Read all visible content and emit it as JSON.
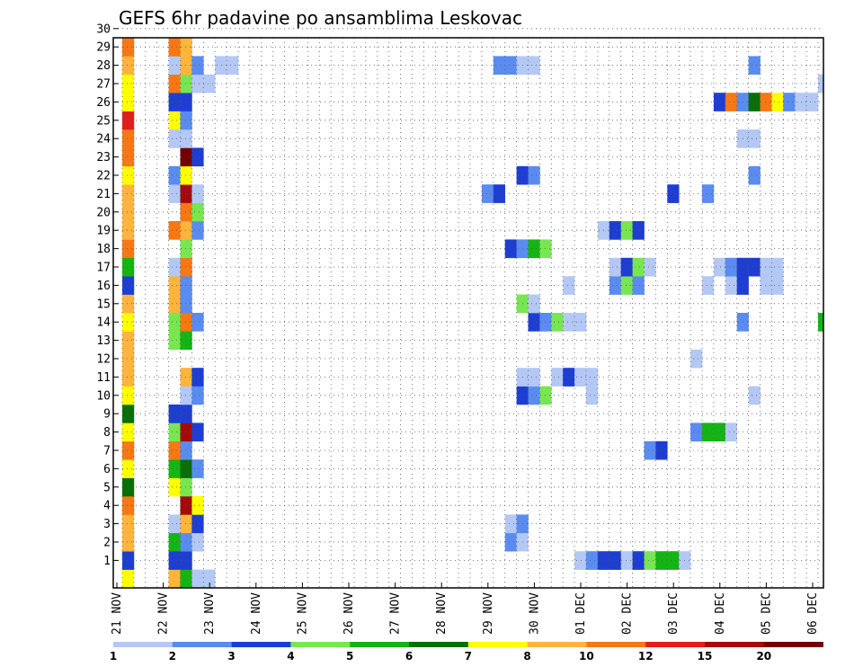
{
  "chart_data": {
    "type": "heatmap",
    "title": "GEFS 6hr padavine po ansamblima Leskovac",
    "xlabel": "",
    "ylabel": "",
    "x_tick_labels": [
      "21 NOV",
      "22 NOV",
      "23 NOV",
      "24 NOV",
      "25 NOV",
      "26 NOV",
      "27 NOV",
      "28 NOV",
      "29 NOV",
      "30 NOV",
      "01 DEC",
      "02 DEC",
      "03 DEC",
      "04 DEC",
      "05 DEC",
      "06 DEC"
    ],
    "y_tick_labels": [
      "1",
      "2",
      "3",
      "4",
      "5",
      "6",
      "7",
      "8",
      "9",
      "10",
      "11",
      "12",
      "13",
      "14",
      "15",
      "16",
      "17",
      "18",
      "19",
      "20",
      "21",
      "22",
      "23",
      "24",
      "25",
      "26",
      "27",
      "28",
      "29",
      "30"
    ],
    "x_unit": "6-hour step from 21 NOV 00z (4 steps per day)",
    "y_unit": "ensemble member (0 = control)",
    "grid": "dotted, every 6 hours",
    "colorbar": {
      "placement": "bottom",
      "labels": [
        "1",
        "2",
        "3",
        "4",
        "5",
        "6",
        "7",
        "8",
        "10",
        "12",
        "15",
        "20"
      ],
      "colors": [
        "#b4c8f5",
        "#5a8cf0",
        "#1e3ed2",
        "#78e650",
        "#14b414",
        "#0a6e0a",
        "#ffff00",
        "#ffb43c",
        "#f57814",
        "#e11e1e",
        "#a50a0a",
        "#730000"
      ]
    },
    "cells": [
      {
        "m": 0,
        "t": 0,
        "v": 7
      },
      {
        "m": 0,
        "t": 4,
        "v": 8
      },
      {
        "m": 0,
        "t": 5,
        "v": 5
      },
      {
        "m": 0,
        "t": 6,
        "v": 1
      },
      {
        "m": 0,
        "t": 7,
        "v": 1
      },
      {
        "m": 1,
        "t": 0,
        "v": 3
      },
      {
        "m": 1,
        "t": 4,
        "v": 3
      },
      {
        "m": 1,
        "t": 5,
        "v": 3
      },
      {
        "m": 1,
        "t": 39,
        "v": 1
      },
      {
        "m": 1,
        "t": 40,
        "v": 2
      },
      {
        "m": 1,
        "t": 41,
        "v": 3
      },
      {
        "m": 1,
        "t": 42,
        "v": 3
      },
      {
        "m": 1,
        "t": 43,
        "v": 1
      },
      {
        "m": 1,
        "t": 44,
        "v": 3
      },
      {
        "m": 1,
        "t": 45,
        "v": 4
      },
      {
        "m": 1,
        "t": 46,
        "v": 5
      },
      {
        "m": 1,
        "t": 47,
        "v": 5
      },
      {
        "m": 1,
        "t": 48,
        "v": 1
      },
      {
        "m": 2,
        "t": 0,
        "v": 8
      },
      {
        "m": 2,
        "t": 4,
        "v": 5
      },
      {
        "m": 2,
        "t": 5,
        "v": 2
      },
      {
        "m": 2,
        "t": 6,
        "v": 1
      },
      {
        "m": 2,
        "t": 33,
        "v": 2
      },
      {
        "m": 2,
        "t": 34,
        "v": 1
      },
      {
        "m": 3,
        "t": 0,
        "v": 8
      },
      {
        "m": 3,
        "t": 4,
        "v": 1
      },
      {
        "m": 3,
        "t": 5,
        "v": 8
      },
      {
        "m": 3,
        "t": 6,
        "v": 3
      },
      {
        "m": 3,
        "t": 33,
        "v": 1
      },
      {
        "m": 3,
        "t": 34,
        "v": 2
      },
      {
        "m": 4,
        "t": 0,
        "v": 10
      },
      {
        "m": 4,
        "t": 5,
        "v": 15
      },
      {
        "m": 4,
        "t": 6,
        "v": 7
      },
      {
        "m": 5,
        "t": 0,
        "v": 6
      },
      {
        "m": 5,
        "t": 4,
        "v": 7
      },
      {
        "m": 5,
        "t": 5,
        "v": 4
      },
      {
        "m": 6,
        "t": 0,
        "v": 7
      },
      {
        "m": 6,
        "t": 4,
        "v": 5
      },
      {
        "m": 6,
        "t": 5,
        "v": 6
      },
      {
        "m": 6,
        "t": 6,
        "v": 2
      },
      {
        "m": 7,
        "t": 0,
        "v": 10
      },
      {
        "m": 7,
        "t": 4,
        "v": 10
      },
      {
        "m": 7,
        "t": 5,
        "v": 2
      },
      {
        "m": 7,
        "t": 45,
        "v": 2
      },
      {
        "m": 7,
        "t": 46,
        "v": 3
      },
      {
        "m": 8,
        "t": 0,
        "v": 7
      },
      {
        "m": 8,
        "t": 4,
        "v": 4
      },
      {
        "m": 8,
        "t": 5,
        "v": 15
      },
      {
        "m": 8,
        "t": 6,
        "v": 3
      },
      {
        "m": 8,
        "t": 49,
        "v": 2
      },
      {
        "m": 8,
        "t": 50,
        "v": 5
      },
      {
        "m": 8,
        "t": 51,
        "v": 5
      },
      {
        "m": 8,
        "t": 52,
        "v": 1
      },
      {
        "m": 9,
        "t": 0,
        "v": 6
      },
      {
        "m": 9,
        "t": 4,
        "v": 3
      },
      {
        "m": 9,
        "t": 5,
        "v": 3
      },
      {
        "m": 10,
        "t": 0,
        "v": 7
      },
      {
        "m": 10,
        "t": 5,
        "v": 1
      },
      {
        "m": 10,
        "t": 6,
        "v": 2
      },
      {
        "m": 10,
        "t": 34,
        "v": 3
      },
      {
        "m": 10,
        "t": 35,
        "v": 2
      },
      {
        "m": 10,
        "t": 36,
        "v": 4
      },
      {
        "m": 10,
        "t": 40,
        "v": 1
      },
      {
        "m": 10,
        "t": 54,
        "v": 1
      },
      {
        "m": 11,
        "t": 0,
        "v": 8
      },
      {
        "m": 11,
        "t": 5,
        "v": 8
      },
      {
        "m": 11,
        "t": 6,
        "v": 3
      },
      {
        "m": 11,
        "t": 34,
        "v": 1
      },
      {
        "m": 11,
        "t": 35,
        "v": 1
      },
      {
        "m": 11,
        "t": 37,
        "v": 1
      },
      {
        "m": 11,
        "t": 38,
        "v": 3
      },
      {
        "m": 11,
        "t": 39,
        "v": 1
      },
      {
        "m": 11,
        "t": 40,
        "v": 1
      },
      {
        "m": 12,
        "t": 0,
        "v": 8
      },
      {
        "m": 12,
        "t": 49,
        "v": 1
      },
      {
        "m": 13,
        "t": 0,
        "v": 8
      },
      {
        "m": 13,
        "t": 4,
        "v": 4
      },
      {
        "m": 13,
        "t": 5,
        "v": 5
      },
      {
        "m": 14,
        "t": 0,
        "v": 7
      },
      {
        "m": 14,
        "t": 4,
        "v": 4
      },
      {
        "m": 14,
        "t": 5,
        "v": 10
      },
      {
        "m": 14,
        "t": 6,
        "v": 2
      },
      {
        "m": 14,
        "t": 35,
        "v": 3
      },
      {
        "m": 14,
        "t": 36,
        "v": 2
      },
      {
        "m": 14,
        "t": 37,
        "v": 4
      },
      {
        "m": 14,
        "t": 38,
        "v": 1
      },
      {
        "m": 14,
        "t": 39,
        "v": 1
      },
      {
        "m": 14,
        "t": 53,
        "v": 2
      },
      {
        "m": 14,
        "t": 60,
        "v": 5
      },
      {
        "m": 14,
        "t": 61,
        "v": 4
      },
      {
        "m": 15,
        "t": 0,
        "v": 8
      },
      {
        "m": 15,
        "t": 4,
        "v": 8
      },
      {
        "m": 15,
        "t": 5,
        "v": 2
      },
      {
        "m": 15,
        "t": 34,
        "v": 4
      },
      {
        "m": 15,
        "t": 35,
        "v": 1
      },
      {
        "m": 16,
        "t": 0,
        "v": 3
      },
      {
        "m": 16,
        "t": 4,
        "v": 8
      },
      {
        "m": 16,
        "t": 5,
        "v": 2
      },
      {
        "m": 16,
        "t": 38,
        "v": 1
      },
      {
        "m": 16,
        "t": 42,
        "v": 2
      },
      {
        "m": 16,
        "t": 43,
        "v": 4
      },
      {
        "m": 16,
        "t": 44,
        "v": 2
      },
      {
        "m": 16,
        "t": 50,
        "v": 1
      },
      {
        "m": 16,
        "t": 52,
        "v": 1
      },
      {
        "m": 16,
        "t": 53,
        "v": 3
      },
      {
        "m": 16,
        "t": 55,
        "v": 1
      },
      {
        "m": 16,
        "t": 56,
        "v": 1
      },
      {
        "m": 17,
        "t": 0,
        "v": 5
      },
      {
        "m": 17,
        "t": 4,
        "v": 1
      },
      {
        "m": 17,
        "t": 5,
        "v": 10
      },
      {
        "m": 17,
        "t": 42,
        "v": 1
      },
      {
        "m": 17,
        "t": 43,
        "v": 3
      },
      {
        "m": 17,
        "t": 44,
        "v": 4
      },
      {
        "m": 17,
        "t": 45,
        "v": 1
      },
      {
        "m": 17,
        "t": 51,
        "v": 1
      },
      {
        "m": 17,
        "t": 52,
        "v": 2
      },
      {
        "m": 17,
        "t": 53,
        "v": 3
      },
      {
        "m": 17,
        "t": 54,
        "v": 3
      },
      {
        "m": 17,
        "t": 55,
        "v": 1
      },
      {
        "m": 17,
        "t": 56,
        "v": 1
      },
      {
        "m": 18,
        "t": 0,
        "v": 10
      },
      {
        "m": 18,
        "t": 5,
        "v": 4
      },
      {
        "m": 18,
        "t": 33,
        "v": 3
      },
      {
        "m": 18,
        "t": 34,
        "v": 2
      },
      {
        "m": 18,
        "t": 35,
        "v": 5
      },
      {
        "m": 18,
        "t": 36,
        "v": 4
      },
      {
        "m": 19,
        "t": 0,
        "v": 8
      },
      {
        "m": 19,
        "t": 4,
        "v": 10
      },
      {
        "m": 19,
        "t": 5,
        "v": 8
      },
      {
        "m": 19,
        "t": 6,
        "v": 2
      },
      {
        "m": 19,
        "t": 41,
        "v": 1
      },
      {
        "m": 19,
        "t": 42,
        "v": 3
      },
      {
        "m": 19,
        "t": 43,
        "v": 4
      },
      {
        "m": 19,
        "t": 44,
        "v": 3
      },
      {
        "m": 20,
        "t": 0,
        "v": 8
      },
      {
        "m": 20,
        "t": 5,
        "v": 10
      },
      {
        "m": 20,
        "t": 6,
        "v": 4
      },
      {
        "m": 21,
        "t": 0,
        "v": 8
      },
      {
        "m": 21,
        "t": 4,
        "v": 1
      },
      {
        "m": 21,
        "t": 5,
        "v": 15
      },
      {
        "m": 21,
        "t": 6,
        "v": 1
      },
      {
        "m": 21,
        "t": 31,
        "v": 2
      },
      {
        "m": 21,
        "t": 32,
        "v": 3
      },
      {
        "m": 21,
        "t": 47,
        "v": 3
      },
      {
        "m": 21,
        "t": 50,
        "v": 2
      },
      {
        "m": 22,
        "t": 0,
        "v": 7
      },
      {
        "m": 22,
        "t": 4,
        "v": 2
      },
      {
        "m": 22,
        "t": 5,
        "v": 7
      },
      {
        "m": 22,
        "t": 34,
        "v": 3
      },
      {
        "m": 22,
        "t": 35,
        "v": 2
      },
      {
        "m": 22,
        "t": 54,
        "v": 2
      },
      {
        "m": 23,
        "t": 0,
        "v": 10
      },
      {
        "m": 23,
        "t": 5,
        "v": 20
      },
      {
        "m": 23,
        "t": 6,
        "v": 3
      },
      {
        "m": 24,
        "t": 0,
        "v": 10
      },
      {
        "m": 24,
        "t": 4,
        "v": 1
      },
      {
        "m": 24,
        "t": 5,
        "v": 1
      },
      {
        "m": 24,
        "t": 53,
        "v": 1
      },
      {
        "m": 24,
        "t": 54,
        "v": 1
      },
      {
        "m": 25,
        "t": 0,
        "v": 12
      },
      {
        "m": 25,
        "t": 4,
        "v": 7
      },
      {
        "m": 25,
        "t": 5,
        "v": 2
      },
      {
        "m": 26,
        "t": 0,
        "v": 7
      },
      {
        "m": 26,
        "t": 4,
        "v": 3
      },
      {
        "m": 26,
        "t": 5,
        "v": 3
      },
      {
        "m": 26,
        "t": 51,
        "v": 3
      },
      {
        "m": 26,
        "t": 52,
        "v": 10
      },
      {
        "m": 26,
        "t": 53,
        "v": 2
      },
      {
        "m": 26,
        "t": 54,
        "v": 6
      },
      {
        "m": 26,
        "t": 55,
        "v": 10
      },
      {
        "m": 26,
        "t": 56,
        "v": 7
      },
      {
        "m": 26,
        "t": 57,
        "v": 2
      },
      {
        "m": 26,
        "t": 58,
        "v": 1
      },
      {
        "m": 26,
        "t": 59,
        "v": 1
      },
      {
        "m": 27,
        "t": 0,
        "v": 7
      },
      {
        "m": 27,
        "t": 4,
        "v": 10
      },
      {
        "m": 27,
        "t": 5,
        "v": 4
      },
      {
        "m": 27,
        "t": 6,
        "v": 1
      },
      {
        "m": 27,
        "t": 7,
        "v": 1
      },
      {
        "m": 27,
        "t": 60,
        "v": 1
      },
      {
        "m": 27,
        "t": 61,
        "v": 2
      },
      {
        "m": 28,
        "t": 0,
        "v": 8
      },
      {
        "m": 28,
        "t": 4,
        "v": 1
      },
      {
        "m": 28,
        "t": 5,
        "v": 8
      },
      {
        "m": 28,
        "t": 6,
        "v": 2
      },
      {
        "m": 28,
        "t": 8,
        "v": 1
      },
      {
        "m": 28,
        "t": 9,
        "v": 1
      },
      {
        "m": 28,
        "t": 32,
        "v": 2
      },
      {
        "m": 28,
        "t": 33,
        "v": 2
      },
      {
        "m": 28,
        "t": 34,
        "v": 1
      },
      {
        "m": 28,
        "t": 35,
        "v": 1
      },
      {
        "m": 28,
        "t": 54,
        "v": 2
      },
      {
        "m": 29,
        "t": 0,
        "v": 10
      },
      {
        "m": 29,
        "t": 4,
        "v": 10
      },
      {
        "m": 29,
        "t": 5,
        "v": 8
      },
      {
        "m": 30,
        "t": 0,
        "v": 10
      },
      {
        "m": 30,
        "t": 4,
        "v": 1
      },
      {
        "m": 30,
        "t": 5,
        "v": 4
      },
      {
        "m": 30,
        "t": 6,
        "v": 3
      },
      {
        "m": 30,
        "t": 8,
        "v": 1
      },
      {
        "m": 30,
        "t": 32,
        "v": 1
      },
      {
        "m": 31,
        "t": 0,
        "v": 10
      },
      {
        "m": 31,
        "t": 4,
        "v": 1
      },
      {
        "m": 31,
        "t": 5,
        "v": 10
      },
      {
        "m": 31,
        "t": 6,
        "v": 2
      },
      {
        "m": 31,
        "t": 36,
        "v": 5
      },
      {
        "m": 31,
        "t": 38,
        "v": 1
      }
    ]
  }
}
